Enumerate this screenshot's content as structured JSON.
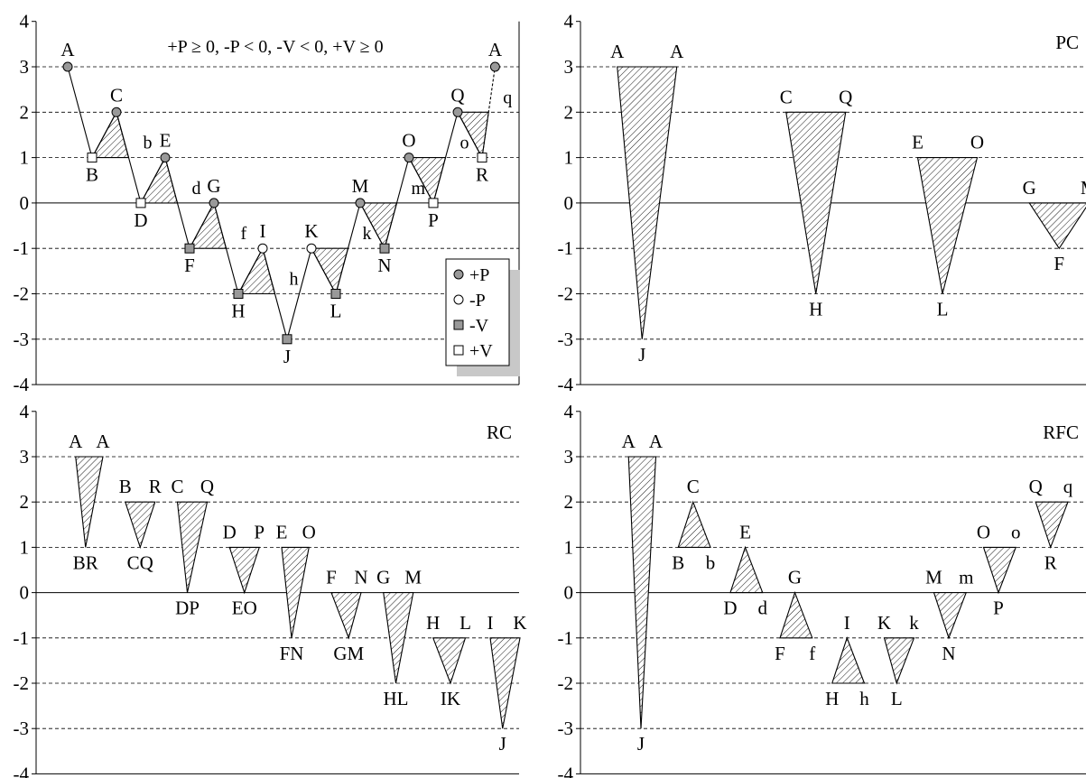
{
  "chart_data": [
    {
      "type": "line",
      "panel": "history",
      "ylim": [
        -4,
        4
      ],
      "yticks": [
        "4",
        "3",
        "2",
        "1",
        "0",
        "-1",
        "-2",
        "-3",
        "-4"
      ],
      "annotation": "+P ≥ 0, -P < 0, -V < 0, +V ≥ 0",
      "legend": {
        "placement": "lower-right",
        "entries": [
          "+P",
          "-P",
          "-V",
          "+V"
        ]
      },
      "points": [
        {
          "label": "A",
          "y": 3,
          "kind": "+P"
        },
        {
          "label": "B",
          "y": 1,
          "kind": "+V"
        },
        {
          "label": "C",
          "y": 2,
          "kind": "+P"
        },
        {
          "label": "D",
          "y": 0,
          "kind": "+V"
        },
        {
          "label": "E",
          "y": 1,
          "kind": "+P"
        },
        {
          "label": "F",
          "y": -1,
          "kind": "-V"
        },
        {
          "label": "G",
          "y": 0,
          "kind": "+P"
        },
        {
          "label": "H",
          "y": -2,
          "kind": "-V"
        },
        {
          "label": "I",
          "y": -1,
          "kind": "-P"
        },
        {
          "label": "J",
          "y": -3,
          "kind": "-V"
        },
        {
          "label": "K",
          "y": -1,
          "kind": "-P"
        },
        {
          "label": "L",
          "y": -2,
          "kind": "-V"
        },
        {
          "label": "M",
          "y": 0,
          "kind": "+P"
        },
        {
          "label": "N",
          "y": -1,
          "kind": "-V"
        },
        {
          "label": "O",
          "y": 1,
          "kind": "+P"
        },
        {
          "label": "P",
          "y": 0,
          "kind": "+V"
        },
        {
          "label": "Q",
          "y": 2,
          "kind": "+P"
        },
        {
          "label": "R",
          "y": 1,
          "kind": "+V"
        },
        {
          "label": "A",
          "y": 3,
          "kind": "+P"
        }
      ],
      "cycles": [
        {
          "from": 1,
          "to": 2,
          "y": 1,
          "label": "b"
        },
        {
          "from": 3,
          "to": 4,
          "y": 0,
          "label": "d"
        },
        {
          "from": 5,
          "to": 6,
          "y": -1,
          "label": "f"
        },
        {
          "from": 7,
          "to": 8,
          "y": -2,
          "label": "h"
        },
        {
          "from": 11,
          "to": 10,
          "y": -1,
          "label": "k"
        },
        {
          "from": 13,
          "to": 12,
          "y": 0,
          "label": "m"
        },
        {
          "from": 15,
          "to": 14,
          "y": 1,
          "label": "o"
        },
        {
          "from": 17,
          "to": 16,
          "y": 2,
          "label": "q"
        }
      ]
    },
    {
      "type": "triangles",
      "panel": "PC",
      "title": "PC",
      "ylim": [
        -4,
        4
      ],
      "yticks": [
        "4",
        "3",
        "2",
        "1",
        "0",
        "-1",
        "-2",
        "-3",
        "-4"
      ],
      "triangles": [
        {
          "l": "A",
          "r": "A",
          "t": "J",
          "top": 3,
          "tip": -3,
          "x": [
            0.25,
            1.45,
            0.75
          ]
        },
        {
          "l": "C",
          "r": "Q",
          "t": "H",
          "top": 2,
          "tip": -2,
          "x": [
            3.65,
            4.85,
            4.25
          ]
        },
        {
          "l": "E",
          "r": "O",
          "t": "L",
          "top": 1,
          "tip": -2,
          "x": [
            6.3,
            7.5,
            6.8
          ]
        },
        {
          "l": "G",
          "r": "M",
          "t": "F",
          "top": 0,
          "tip": -1,
          "x": [
            8.55,
            9.75,
            9.15
          ]
        }
      ]
    },
    {
      "type": "triangles",
      "panel": "RC",
      "title": "RC",
      "ylim": [
        -4,
        4
      ],
      "yticks": [
        "4",
        "3",
        "2",
        "1",
        "0",
        "-1",
        "-2",
        "-3",
        "-4"
      ],
      "triangles": [
        {
          "l": "A",
          "r": "A",
          "t": "BR",
          "top": 3,
          "tip": 1,
          "x": [
            0.25,
            0.8,
            0.45
          ]
        },
        {
          "l": "B",
          "r": "R",
          "t": "CQ",
          "top": 2,
          "tip": 1,
          "x": [
            1.25,
            1.85,
            1.55
          ]
        },
        {
          "l": "C",
          "r": "Q",
          "t": "DP",
          "top": 2,
          "tip": 0,
          "x": [
            2.3,
            2.9,
            2.5
          ]
        },
        {
          "l": "D",
          "r": "P",
          "t": "EO",
          "top": 1,
          "tip": 0,
          "x": [
            3.35,
            3.95,
            3.65
          ]
        },
        {
          "l": "E",
          "r": "O",
          "t": "FN",
          "top": 1,
          "tip": -1,
          "x": [
            4.4,
            4.95,
            4.6
          ]
        },
        {
          "l": "F",
          "r": "N",
          "t": "GM",
          "top": 0,
          "tip": -1,
          "x": [
            5.4,
            6.0,
            5.75
          ]
        },
        {
          "l": "G",
          "r": "M",
          "t": "HL",
          "top": 0,
          "tip": -2,
          "x": [
            6.45,
            7.05,
            6.7
          ]
        },
        {
          "l": "H",
          "r": "L",
          "t": "IK",
          "top": -1,
          "tip": -2,
          "x": [
            7.45,
            8.1,
            7.8
          ]
        },
        {
          "l": "I",
          "r": "K",
          "t": "J",
          "top": -1,
          "tip": -3,
          "x": [
            8.6,
            9.2,
            8.85
          ]
        }
      ]
    },
    {
      "type": "triangles",
      "panel": "RFC",
      "title": "RFC",
      "ylim": [
        -4,
        4
      ],
      "yticks": [
        "4",
        "3",
        "2",
        "1",
        "0",
        "-1",
        "-2",
        "-3",
        "-4"
      ],
      "triangles": [
        {
          "l": "A",
          "r": "A",
          "t": "J",
          "top": 3,
          "tip": -3,
          "x": [
            0.15,
            0.7,
            0.4
          ]
        },
        {
          "l": "B",
          "r": "b",
          "t": "C",
          "top": 1,
          "tip": 2,
          "x": [
            1.15,
            1.8,
            1.45
          ]
        },
        {
          "l": "D",
          "r": "d",
          "t": "E",
          "top": 0,
          "tip": 1,
          "x": [
            2.2,
            2.85,
            2.5
          ]
        },
        {
          "l": "F",
          "r": "f",
          "t": "G",
          "top": -1,
          "tip": 0,
          "x": [
            3.2,
            3.85,
            3.5
          ]
        },
        {
          "l": "H",
          "r": "h",
          "t": "I",
          "top": -2,
          "tip": -1,
          "x": [
            4.25,
            4.9,
            4.55
          ]
        },
        {
          "l": "K",
          "r": "k",
          "t": "L",
          "top": -1,
          "tip": -2,
          "x": [
            5.3,
            5.9,
            5.55
          ]
        },
        {
          "l": "M",
          "r": "m",
          "t": "N",
          "top": 0,
          "tip": -1,
          "x": [
            6.3,
            6.95,
            6.6
          ]
        },
        {
          "l": "O",
          "r": "o",
          "t": "P",
          "top": 1,
          "tip": 0,
          "x": [
            7.3,
            7.95,
            7.6
          ]
        },
        {
          "l": "Q",
          "r": "q",
          "t": "R",
          "top": 2,
          "tip": 1,
          "x": [
            8.35,
            9.0,
            8.65
          ]
        }
      ]
    }
  ]
}
